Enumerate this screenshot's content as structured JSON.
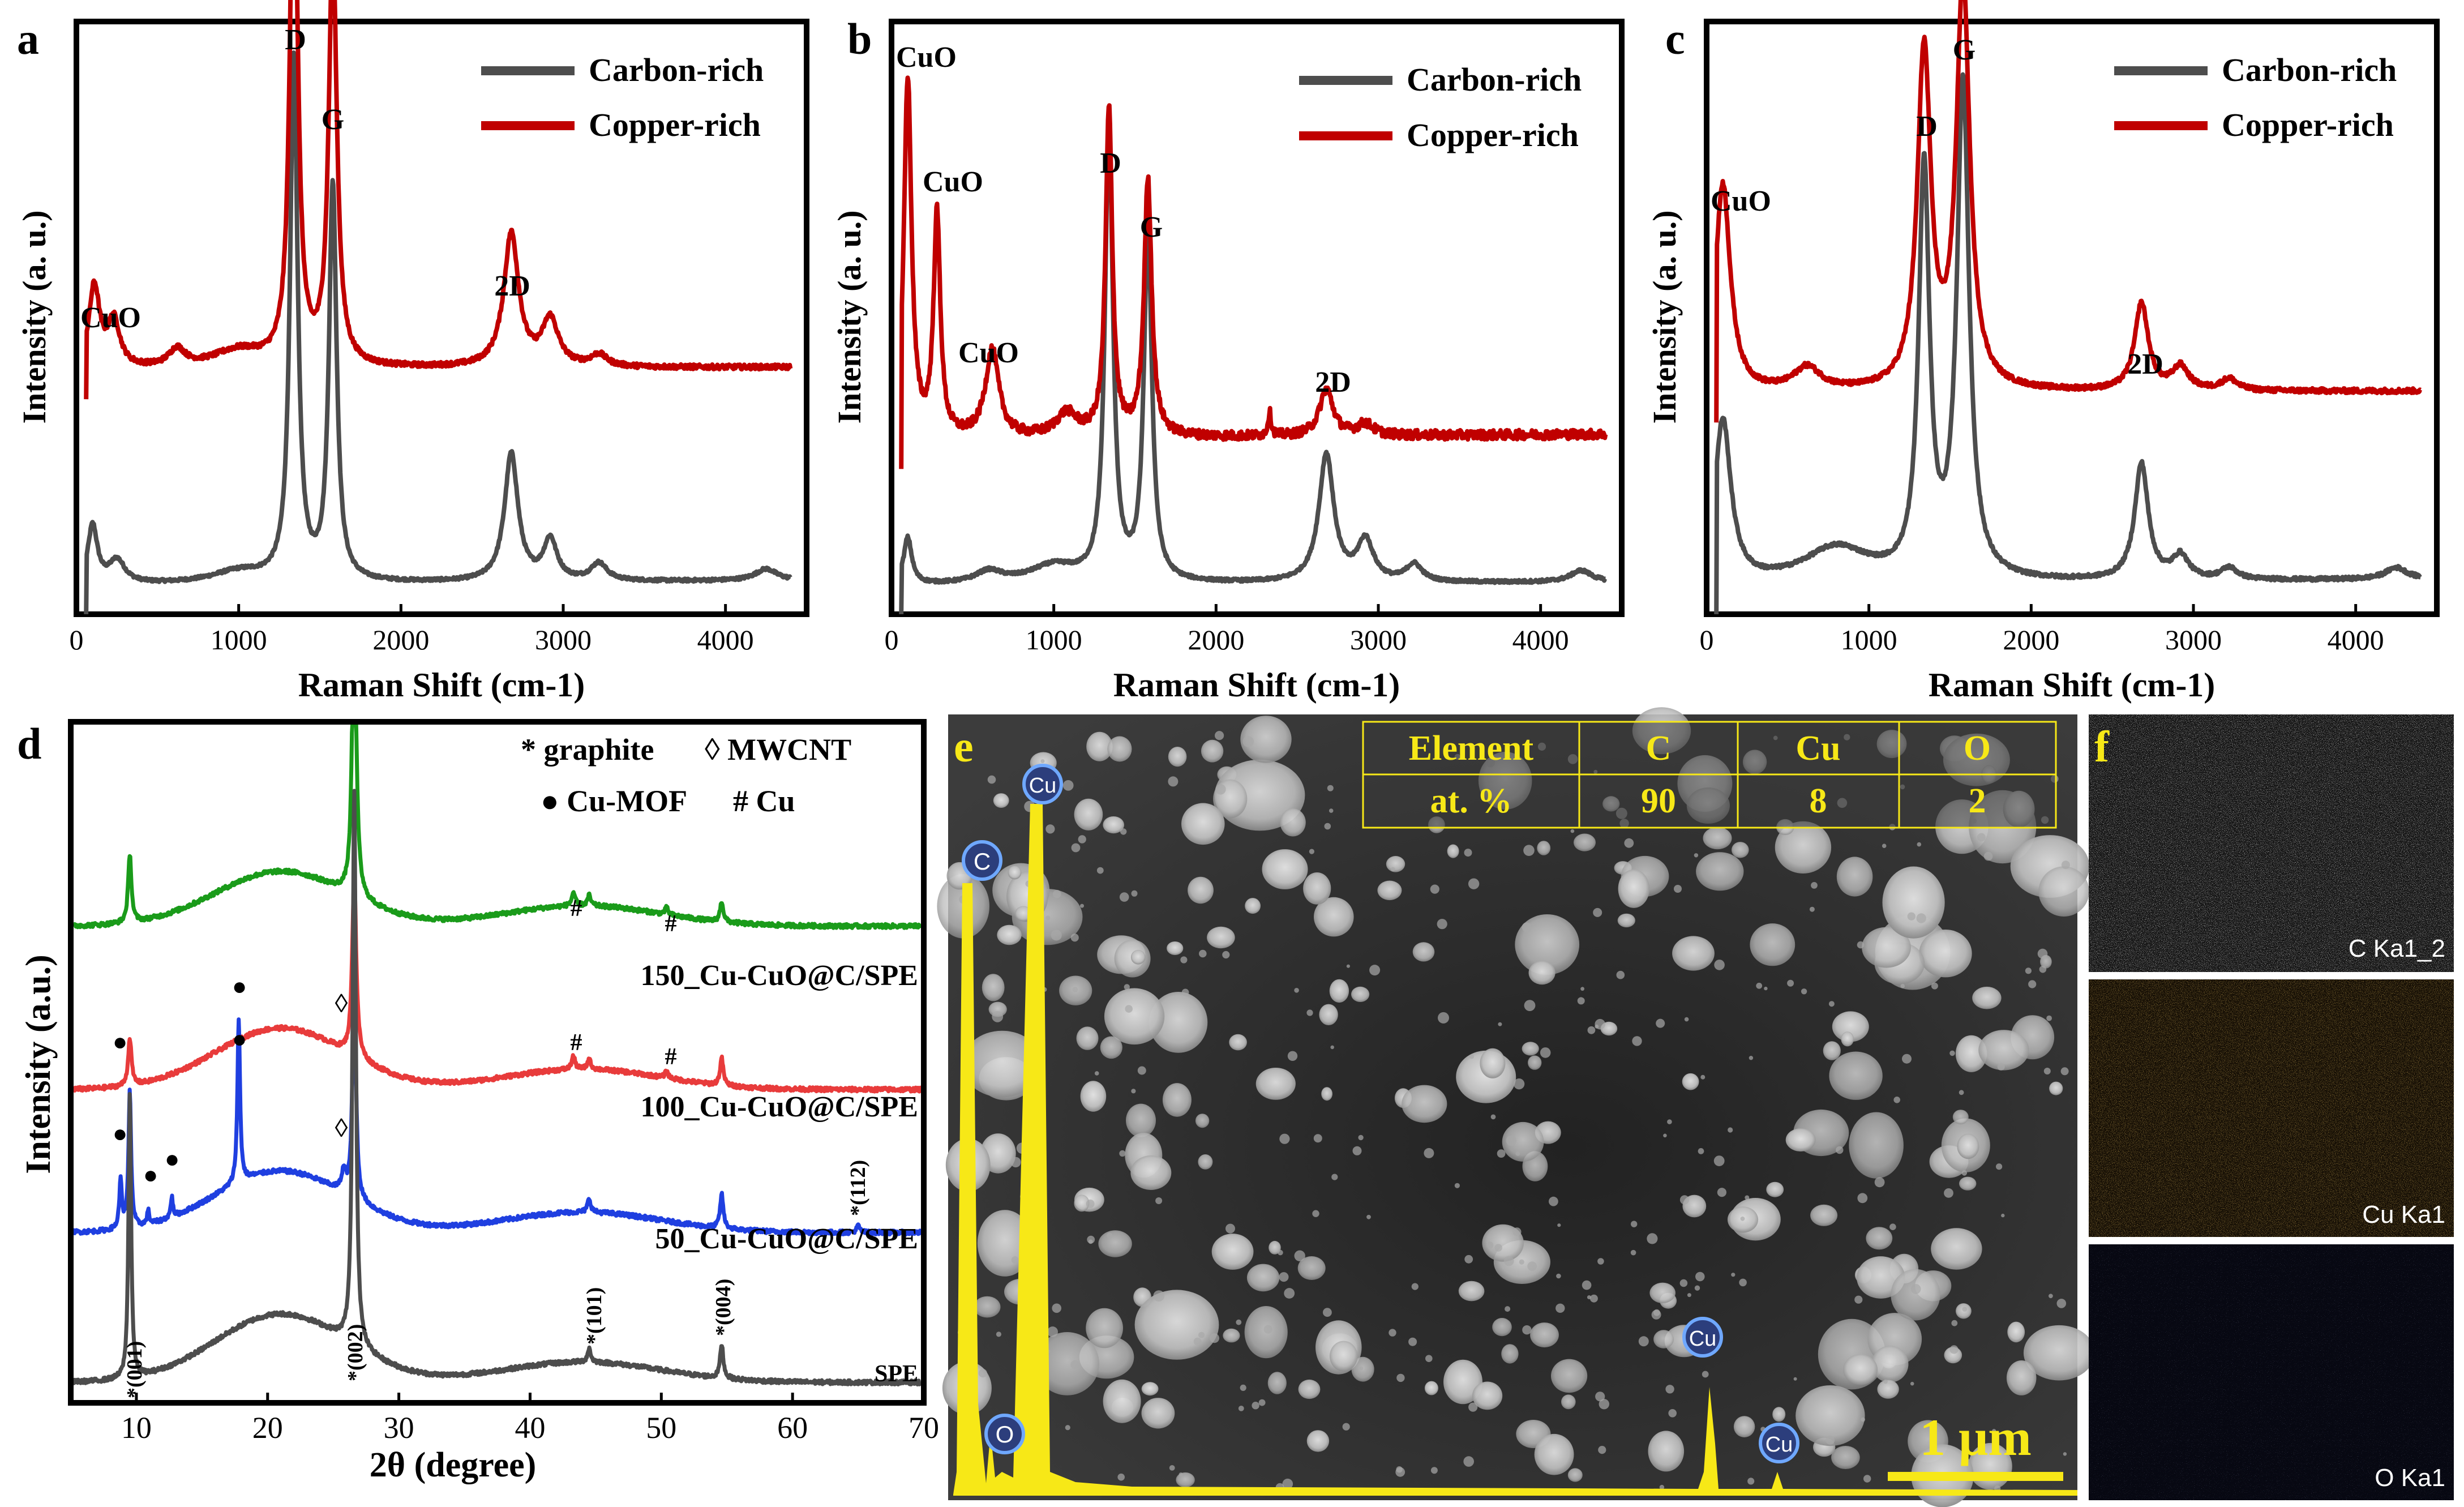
{
  "chart_data": [
    {
      "panel_letter": "a",
      "type": "line",
      "xlabel": "Raman Shift (cm-1)",
      "ylabel": "Intensity (a. u.)",
      "xlim": [
        0,
        4500
      ],
      "xticks": [
        0,
        1000,
        2000,
        3000,
        4000
      ],
      "legend": {
        "position": "top-right",
        "entries": [
          "Carbon-rich",
          "Copper-rich"
        ]
      },
      "series": [
        {
          "name": "Carbon-rich",
          "color": "#4d4d4d",
          "baseline": 0.05,
          "slope": 0.008,
          "noise": 0.0025,
          "peaks": [
            [
              100,
              0.1,
              35
            ],
            [
              250,
              0.04,
              60
            ],
            [
              1000,
              0.02,
              200
            ],
            [
              1340,
              0.9,
              28
            ],
            [
              1580,
              0.68,
              28
            ],
            [
              2680,
              0.22,
              50
            ],
            [
              2920,
              0.07,
              50
            ],
            [
              3220,
              0.03,
              60
            ],
            [
              4250,
              0.02,
              80
            ]
          ]
        },
        {
          "name": "Copper-rich",
          "color": "#c00000",
          "baseline": 0.42,
          "slope": 0.005,
          "noise": 0.004,
          "peaks": [
            [
              110,
              0.14,
              40
            ],
            [
              230,
              0.08,
              45
            ],
            [
              620,
              0.03,
              60
            ],
            [
              1000,
              0.03,
              200
            ],
            [
              1340,
              0.96,
              28
            ],
            [
              1580,
              0.72,
              30
            ],
            [
              2680,
              0.23,
              55
            ],
            [
              2920,
              0.08,
              60
            ],
            [
              3220,
              0.02,
              60
            ]
          ]
        }
      ],
      "annotations": [
        "CuO",
        "D",
        "G",
        "2D"
      ]
    },
    {
      "panel_letter": "b",
      "type": "line",
      "xlabel": "Raman Shift (cm-1)",
      "ylabel": "Intensity (a. u.)",
      "xlim": [
        0,
        4500
      ],
      "xticks": [
        0,
        1000,
        2000,
        3000,
        4000
      ],
      "legend": {
        "position": "top-right",
        "entries": [
          "Carbon-rich",
          "Copper-rich"
        ]
      },
      "series": [
        {
          "name": "Carbon-rich",
          "color": "#4d4d4d",
          "baseline": 0.05,
          "slope": 0.005,
          "noise": 0.0025,
          "peaks": [
            [
              100,
              0.08,
              30
            ],
            [
              600,
              0.02,
              100
            ],
            [
              1000,
              0.03,
              180
            ],
            [
              1340,
              0.78,
              30
            ],
            [
              1580,
              0.6,
              30
            ],
            [
              2680,
              0.22,
              55
            ],
            [
              2920,
              0.07,
              60
            ],
            [
              3220,
              0.03,
              60
            ],
            [
              4250,
              0.02,
              80
            ]
          ]
        },
        {
          "name": "Copper-rich",
          "color": "#c00000",
          "baseline": 0.3,
          "slope": 0.01,
          "noise": 0.008,
          "peaks": [
            [
              100,
              0.62,
              28
            ],
            [
              280,
              0.38,
              25
            ],
            [
              620,
              0.15,
              50
            ],
            [
              1080,
              0.04,
              80
            ],
            [
              1340,
              0.56,
              25
            ],
            [
              1580,
              0.44,
              28
            ],
            [
              2330,
              0.04,
              12
            ],
            [
              2680,
              0.08,
              50
            ],
            [
              2920,
              0.02,
              60
            ]
          ]
        }
      ],
      "annotations": [
        "CuO",
        "CuO",
        "CuO",
        "D",
        "G",
        "2D"
      ]
    },
    {
      "panel_letter": "c",
      "type": "line",
      "xlabel": "Raman Shift (cm-1)",
      "ylabel": "Intensity (a. u.)",
      "xlim": [
        0,
        4500
      ],
      "xticks": [
        0,
        1000,
        2000,
        3000,
        4000
      ],
      "legend": {
        "position": "top-right",
        "entries": [
          "Carbon-rich",
          "Copper-rich"
        ]
      },
      "series": [
        {
          "name": "Carbon-rich",
          "color": "#4d4d4d",
          "baseline": 0.05,
          "slope": 0.01,
          "noise": 0.003,
          "peaks": [
            [
              100,
              0.28,
              60
            ],
            [
              800,
              0.06,
              250
            ],
            [
              1340,
              0.7,
              40
            ],
            [
              1580,
              0.85,
              45
            ],
            [
              2680,
              0.2,
              50
            ],
            [
              2920,
              0.04,
              60
            ],
            [
              3220,
              0.02,
              60
            ],
            [
              4250,
              0.02,
              80
            ]
          ]
        },
        {
          "name": "Copper-rich",
          "color": "#c00000",
          "baseline": 0.38,
          "slope": 0.004,
          "noise": 0.004,
          "peaks": [
            [
              100,
              0.36,
              55
            ],
            [
              620,
              0.04,
              100
            ],
            [
              1340,
              0.58,
              50
            ],
            [
              1580,
              0.7,
              50
            ],
            [
              2680,
              0.15,
              50
            ],
            [
              2920,
              0.04,
              60
            ],
            [
              3220,
              0.02,
              60
            ]
          ]
        }
      ],
      "annotations": [
        "CuO",
        "D",
        "G",
        "2D"
      ]
    },
    {
      "panel_letter": "d",
      "type": "line",
      "xlabel": "2θ (degree)",
      "ylabel": "Intensity (a.u.)",
      "xlim": [
        5,
        70
      ],
      "xticks": [
        10,
        20,
        30,
        40,
        50,
        60,
        70
      ],
      "legend_items": [
        "* graphite",
        "◊ MWCNT",
        "● Cu-MOF",
        "# Cu"
      ],
      "series": [
        {
          "name": "150_Cu-CuO@C/SPE",
          "color": "#1a9b1a",
          "offset": 0.7,
          "hump": [
            0.08,
            21,
            5
          ],
          "peaks": [
            [
              9.5,
              0.1,
              0.15
            ],
            [
              26.6,
              0.46,
              0.18
            ],
            [
              43.3,
              0.02,
              0.15
            ],
            [
              44.5,
              0.015,
              0.15
            ],
            [
              50.4,
              0.01,
              0.15
            ],
            [
              54.6,
              0.03,
              0.15
            ]
          ]
        },
        {
          "name": "100_Cu-CuO@C/SPE",
          "color": "#e83b3b",
          "offset": 0.46,
          "hump": [
            0.09,
            21,
            5
          ],
          "peaks": [
            [
              9.5,
              0.07,
              0.15
            ],
            [
              26.6,
              0.27,
              0.18
            ],
            [
              43.3,
              0.02,
              0.15
            ],
            [
              44.5,
              0.015,
              0.15
            ],
            [
              50.4,
              0.01,
              0.15
            ],
            [
              54.6,
              0.04,
              0.15
            ]
          ]
        },
        {
          "name": "50_Cu-CuO@C/SPE",
          "color": "#1f3fe0",
          "offset": 0.25,
          "hump": [
            0.09,
            21,
            5
          ],
          "peaks": [
            [
              8.8,
              0.07,
              0.12
            ],
            [
              9.5,
              0.2,
              0.12
            ],
            [
              10.9,
              0.02,
              0.1
            ],
            [
              12.7,
              0.03,
              0.1
            ],
            [
              17.8,
              0.24,
              0.12
            ],
            [
              25.8,
              0.03,
              0.2
            ],
            [
              26.6,
              0.34,
              0.15
            ],
            [
              44.5,
              0.02,
              0.15
            ],
            [
              54.6,
              0.05,
              0.15
            ],
            [
              65,
              0.01,
              0.15
            ]
          ]
        },
        {
          "name": "SPE",
          "color": "#4d4d4d",
          "offset": 0.03,
          "hump": [
            0.1,
            21,
            5
          ],
          "peaks": [
            [
              9.5,
              0.42,
              0.12
            ],
            [
              26.6,
              0.82,
              0.15
            ],
            [
              44.5,
              0.02,
              0.15
            ],
            [
              54.6,
              0.05,
              0.15
            ]
          ]
        }
      ],
      "peak_labels": [
        "*(001)",
        "*(002)",
        "*(101)",
        "*(004)",
        "*(112)"
      ],
      "marker_symbols": [
        "#",
        "#",
        "#",
        "#",
        "●",
        "●",
        "●",
        "●",
        "●",
        "●",
        "◊",
        "◊"
      ]
    }
  ],
  "panel_e": {
    "letter": "e",
    "table": {
      "headers": [
        "Element",
        "C",
        "Cu",
        "O"
      ],
      "row_label": "at. %",
      "values": [
        "90",
        "8",
        "2"
      ]
    },
    "edx_labels": [
      "C",
      "Cu",
      "O",
      "Cu",
      "Cu"
    ],
    "scale_bar": "1 μm"
  },
  "panel_f": {
    "letter": "f",
    "maps": [
      {
        "label": "C Ka1_2",
        "color": "#e6e6e6",
        "bg": "#141414"
      },
      {
        "label": "Cu Ka1",
        "color": "#d08a1a",
        "bg": "#160f05"
      },
      {
        "label": "O Ka1",
        "color": "#7f86c8",
        "bg": "#070812"
      }
    ]
  },
  "colors": {
    "yellow": "#f7e817",
    "carbon": "#4d4d4d",
    "copper": "#c00000"
  }
}
